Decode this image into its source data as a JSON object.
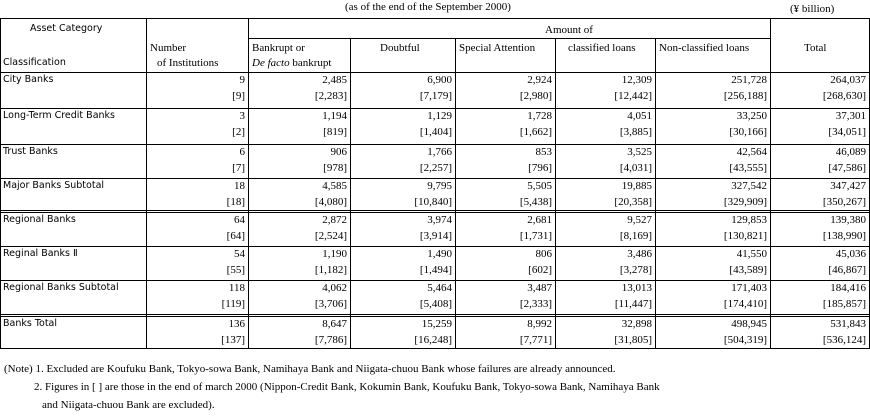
{
  "header": {
    "as_of": "(as of the end of the September 2000)",
    "unit": "(¥  billion)"
  },
  "table": {
    "columns": {
      "asset_category": "Asset Category",
      "classification": "Classification",
      "number_1": "Number",
      "number_2": "of Institutions",
      "bankrupt_1": "Bankrupt or",
      "bankrupt_2_italic": "De facto",
      "bankrupt_2": "bankrupt",
      "doubtful": "Doubtful",
      "special": "Special Attention",
      "amount_1": "Amount of",
      "amount_2": "classified loans",
      "non_classified": "Non-classified loans",
      "total": "Total"
    },
    "rows": [
      {
        "name": "City Banks",
        "values": [
          "9",
          "2,485",
          "6,900",
          "2,924",
          "12,309",
          "251,728",
          "264,037"
        ],
        "prior": [
          "[9]",
          "[2,283]",
          "[7,179]",
          "[2,980]",
          "[12,442]",
          "[256,188]",
          "[268,630]"
        ]
      },
      {
        "name": "Long-Term Credit Banks",
        "values": [
          "3",
          "1,194",
          "1,129",
          "1,728",
          "4,051",
          "33,250",
          "37,301"
        ],
        "prior": [
          "[2]",
          "[819]",
          "[1,404]",
          "[1,662]",
          "[3,885]",
          "[30,166]",
          "[34,051]"
        ]
      },
      {
        "name": "Trust Banks",
        "values": [
          "6",
          "906",
          "1,766",
          "853",
          "3,525",
          "42,564",
          "46,089"
        ],
        "prior": [
          "[7]",
          "[978]",
          "[2,257]",
          "[796]",
          "[4,031]",
          "[43,555]",
          "[47,586]"
        ]
      },
      {
        "name": "Major Banks Subtotal",
        "values": [
          "18",
          "4,585",
          "9,795",
          "5,505",
          "19,885",
          "327,542",
          "347,427"
        ],
        "prior": [
          "[18]",
          "[4,080]",
          "[10,840]",
          "[5,438]",
          "[20,358]",
          "[329,909]",
          "[350,267]"
        ]
      },
      {
        "name": "Regional Banks",
        "values": [
          "64",
          "2,872",
          "3,974",
          "2,681",
          "9,527",
          "129,853",
          "139,380"
        ],
        "prior": [
          "[64]",
          "[2,524]",
          "[3,914]",
          "[1,731]",
          "[8,169]",
          "[130,821]",
          "[138,990]"
        ]
      },
      {
        "name": "Reginal Banks Ⅱ",
        "values": [
          "54",
          "1,190",
          "1,490",
          "806",
          "3,486",
          "41,550",
          "45,036"
        ],
        "prior": [
          "[55]",
          "[1,182]",
          "[1,494]",
          "[602]",
          "[3,278]",
          "[43,589]",
          "[46,867]"
        ]
      },
      {
        "name": "Regional Banks Subtotal",
        "values": [
          "118",
          "4,062",
          "5,464",
          "3,487",
          "13,013",
          "171,403",
          "184,416"
        ],
        "prior": [
          "[119]",
          "[3,706]",
          "[5,408]",
          "[2,333]",
          "[11,447]",
          "[174,410]",
          "[185,857]"
        ]
      },
      {
        "name": "Banks Total",
        "values": [
          "136",
          "8,647",
          "15,259",
          "8,992",
          "32,898",
          "498,945",
          "531,843"
        ],
        "prior": [
          "[137]",
          "[7,786]",
          "[16,248]",
          "[7,771]",
          "[31,805]",
          "[504,319]",
          "[536,124]"
        ]
      }
    ]
  },
  "notes": [
    "(Note) 1. Excluded are Koufuku Bank, Tokyo-sowa Bank, Namihaya Bank and Niigata-chuou Bank whose failures are already announced.",
    "2. Figures in [ ] are those in the end of march 2000 (Nippon-Credit Bank, Kokumin Bank, Koufuku Bank, Tokyo-sowa Bank, Namihaya Bank",
    "and Niigata-chuou Bank are excluded)."
  ]
}
